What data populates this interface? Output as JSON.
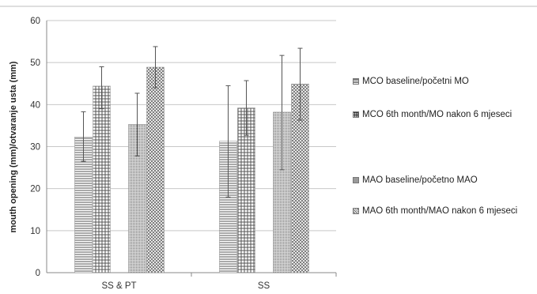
{
  "chart_data": {
    "type": "bar",
    "title": "",
    "xlabel": "",
    "ylabel": "mouth opening (mm)/otvaranje usta (mm)",
    "ylim": [
      0,
      60
    ],
    "yticks": [
      0,
      10,
      20,
      30,
      40,
      50,
      60
    ],
    "grid": true,
    "legend_placement": "right",
    "categories": [
      "SS & PT",
      "SS"
    ],
    "series": [
      {
        "name": "MCO baseline/početni  MO",
        "values": [
          32.3,
          31.3
        ],
        "error_low": [
          26.5,
          18.0
        ],
        "error_high": [
          38.3,
          44.5
        ],
        "pattern": "hlines"
      },
      {
        "name": "MCO 6th month/MO nakon 6 mjeseci",
        "values": [
          44.4,
          39.2
        ],
        "error_low": [
          39.0,
          32.7
        ],
        "error_high": [
          49.0,
          45.7
        ],
        "pattern": "grid"
      },
      {
        "name": "MAO baseline/početno MAO",
        "values": [
          35.3,
          38.2
        ],
        "error_low": [
          27.8,
          24.5
        ],
        "error_high": [
          42.7,
          51.7
        ],
        "pattern": "dots"
      },
      {
        "name": "MAO 6th month/MAO nakon 6 mjeseci",
        "values": [
          48.9,
          44.9
        ],
        "error_low": [
          44.0,
          36.3
        ],
        "error_high": [
          53.8,
          53.4
        ],
        "pattern": "xhatch"
      }
    ]
  },
  "colors": {
    "grid": "#c8c8c8",
    "axis": "#888888",
    "error_bar": "#555555",
    "pattern": "#555555"
  }
}
